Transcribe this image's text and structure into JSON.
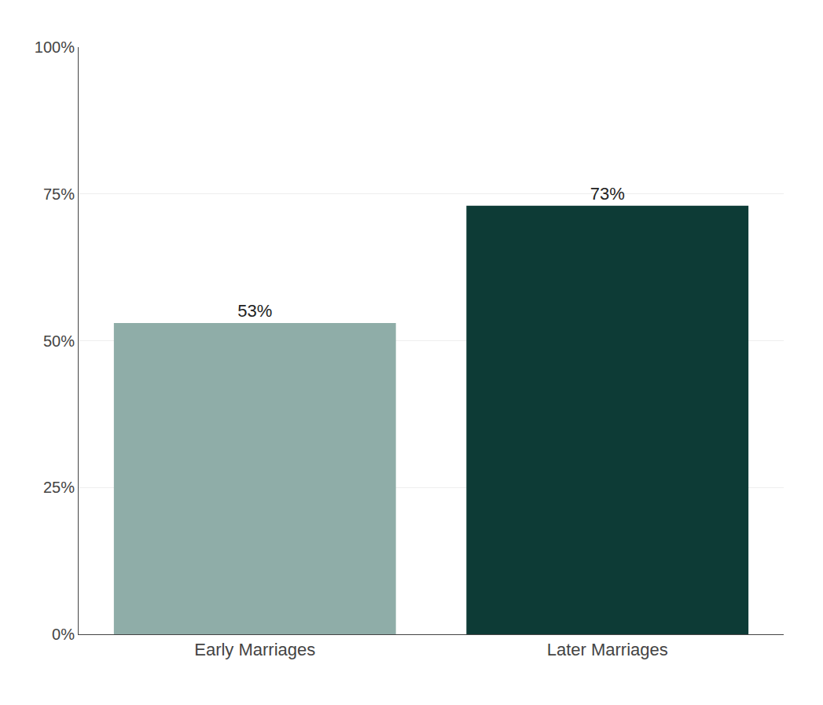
{
  "chart_data": {
    "type": "bar",
    "categories": [
      "Early Marriages",
      "Later Marriages"
    ],
    "values": [
      0.53,
      0.73
    ],
    "value_labels": [
      "53%",
      "73%"
    ],
    "colors": [
      "#8fada8",
      "#0d3b36"
    ],
    "ylim": [
      0,
      1.0
    ],
    "yticks": [
      {
        "value": 0,
        "label": "0%"
      },
      {
        "value": 0.25,
        "label": "25%"
      },
      {
        "value": 0.5,
        "label": "50%"
      },
      {
        "value": 0.75,
        "label": "75%"
      },
      {
        "value": 1.0,
        "label": "100%"
      }
    ],
    "grid": true,
    "data_labels": true
  }
}
